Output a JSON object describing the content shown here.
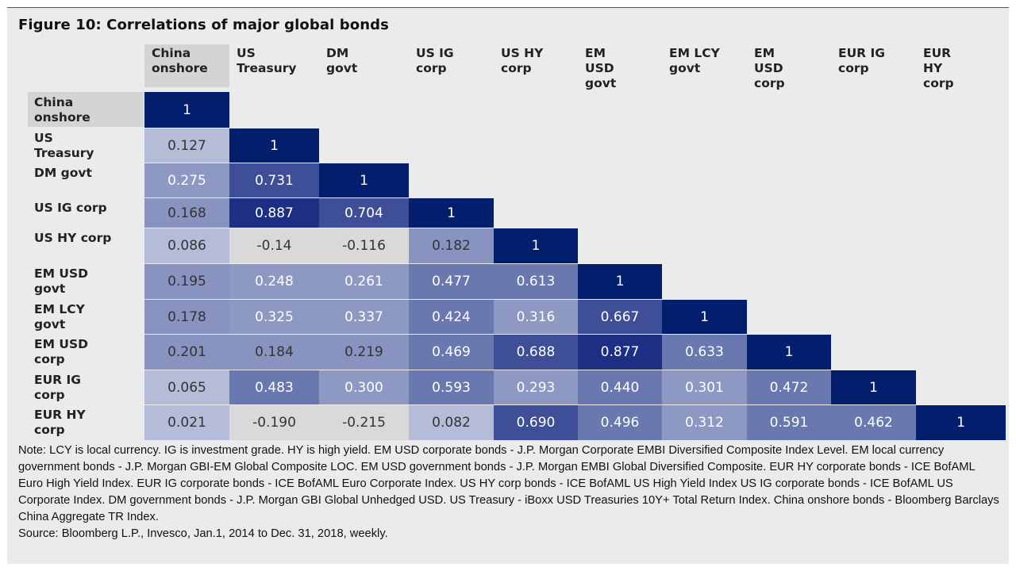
{
  "title": "Figure 10: Correlations of major global bonds",
  "column_headers": [
    [
      "China",
      "onshore"
    ],
    [
      "US",
      "Treasury"
    ],
    [
      "DM",
      "govt"
    ],
    [
      "US IG",
      "corp"
    ],
    [
      "US HY",
      "corp"
    ],
    [
      "EM",
      "USD",
      "govt"
    ],
    [
      "EM LCY",
      "govt"
    ],
    [
      "EM",
      "USD",
      "corp"
    ],
    [
      "EUR IG",
      "corp"
    ],
    [
      "EUR",
      "HY",
      "corp"
    ]
  ],
  "row_headers": [
    [
      "China",
      "onshore"
    ],
    [
      "US",
      "Treasury"
    ],
    [
      "DM govt"
    ],
    [
      "US IG corp"
    ],
    [
      "US HY corp"
    ],
    [
      "EM USD",
      "govt"
    ],
    [
      "EM LCY",
      "govt"
    ],
    [
      "EM USD",
      "corp"
    ],
    [
      "EUR IG",
      "corp"
    ],
    [
      "EUR HY",
      "corp"
    ]
  ],
  "chart_data": {
    "type": "heatmap",
    "title": "Figure 10: Correlations of major global bonds",
    "categories": [
      "China onshore",
      "US Treasury",
      "DM govt",
      "US IG corp",
      "US HY corp",
      "EM USD govt",
      "EM LCY govt",
      "EM USD corp",
      "EUR IG corp",
      "EUR HY corp"
    ],
    "matrix": [
      [
        "1"
      ],
      [
        "0.127",
        "1"
      ],
      [
        "0.275",
        "0.731",
        "1"
      ],
      [
        "0.168",
        "0.887",
        "0.704",
        "1"
      ],
      [
        "0.086",
        "-0.14",
        "-0.116",
        "0.182",
        "1"
      ],
      [
        "0.195",
        "0.248",
        "0.261",
        "0.477",
        "0.613",
        "1"
      ],
      [
        "0.178",
        "0.325",
        "0.337",
        "0.424",
        "0.316",
        "0.667",
        "1"
      ],
      [
        "0.201",
        "0.184",
        "0.219",
        "0.469",
        "0.688",
        "0.877",
        "0.633",
        "1"
      ],
      [
        "0.065",
        "0.483",
        "0.300",
        "0.593",
        "0.293",
        "0.440",
        "0.301",
        "0.472",
        "1"
      ],
      [
        "0.021",
        "-0.190",
        "-0.215",
        "0.082",
        "0.690",
        "0.496",
        "0.312",
        "0.591",
        "0.462",
        "1"
      ]
    ],
    "colors": {
      "diagonal": "#041e6e",
      "high": "#1c2f84",
      "upper_mid": "#3e4f97",
      "mid": "#6a78b0",
      "lower_mid": "#8d98c3",
      "low": "#b4bcd8",
      "negative": "#d9d9d9"
    }
  },
  "notes": [
    "Note: LCY is local currency. IG is investment grade. HY is high yield. EM USD corporate bonds - J.P. Morgan Corporate EMBI Diversified Composite Index Level. EM local currency government bonds - J.P. Morgan GBI-EM Global Composite LOC. EM USD government bonds - J.P. Morgan EMBI Global Diversified Composite. EUR HY corporate bonds - ICE BofAML Euro High Yield Index. EUR IG corporate bonds - ICE BofAML Euro Corporate Index. US HY corp bonds - ICE BofAML US High Yield Index US IG corporate bonds - ICE BofAML US Corporate Index. DM government bonds - J.P. Morgan GBI Global Unhedged USD. US Treasury - iBoxx USD Treasuries 10Y+ Total Return Index. China onshore bonds - Bloomberg Barclays China Aggregate TR Index.",
    "Source: Bloomberg L.P., Invesco, Jan.1, 2014 to Dec. 31, 2018, weekly."
  ]
}
